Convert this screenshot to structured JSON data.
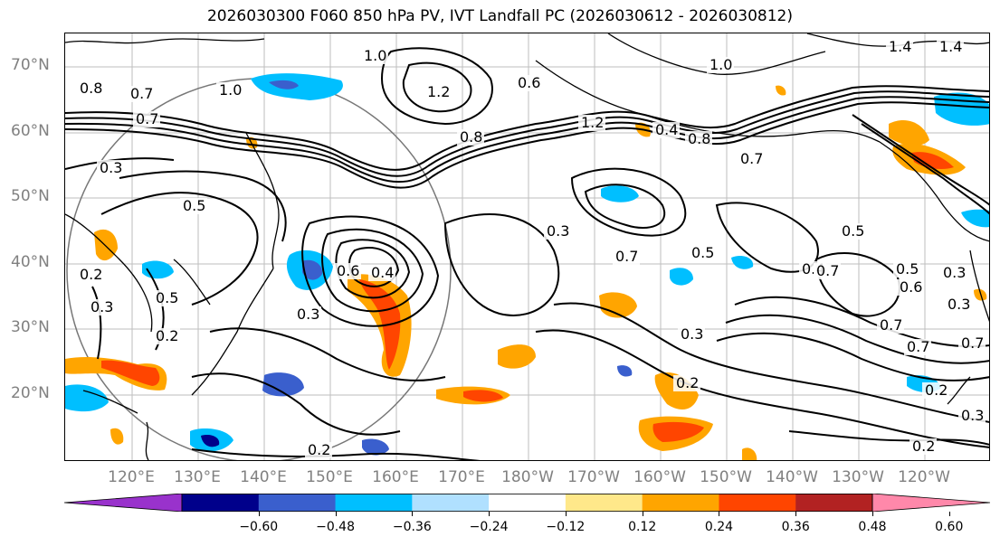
{
  "title": "2026030300 F060 850 hPa PV, IVT Landfall PC (2026030612 - 2026030812)",
  "lat_labels": [
    "70°N",
    "60°N",
    "50°N",
    "40°N",
    "30°N",
    "20°N"
  ],
  "lon_labels": [
    "120°E",
    "130°E",
    "140°E",
    "150°E",
    "160°E",
    "170°E",
    "180°W",
    "170°W",
    "160°W",
    "150°W",
    "140°W",
    "130°W",
    "120°W"
  ],
  "contour_labels": [
    "1.0",
    "0.8",
    "0.7",
    "0.7",
    "0.3",
    "0.5",
    "0.2",
    "0.3",
    "0.5",
    "0.2",
    "1.0",
    "1.2",
    "0.8",
    "0.6",
    "0.7",
    "1.2",
    "0.4",
    "1.0",
    "0.8",
    "0.6",
    "0.3",
    "0.5",
    "0.7",
    "0.5",
    "0.4",
    "0.3",
    "0.2",
    "0.7",
    "0.5",
    "0.7",
    "0.3",
    "0.7",
    "0.6",
    "0.3",
    "0.7",
    "0.2",
    "0.3",
    "0.2",
    "1.4",
    "1.4",
    "0.3",
    "0.4",
    "0.2"
  ],
  "colorbar": {
    "colors": [
      "#9932CC",
      "#00008B",
      "#3A5FCD",
      "#00BFFF",
      "#B0E0FF",
      "#FFFFFF",
      "#FFE88A",
      "#FFA500",
      "#FF4500",
      "#B22222",
      "#FF88AA"
    ],
    "ticks": [
      "−0.60",
      "−0.48",
      "−0.36",
      "−0.24",
      "−0.12",
      "0.12",
      "0.24",
      "0.36",
      "0.48",
      "0.60"
    ]
  }
}
